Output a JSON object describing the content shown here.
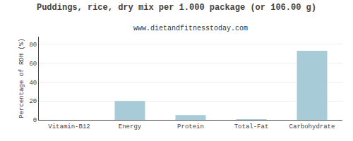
{
  "chart_data": {
    "type": "bar",
    "title": "Puddings, rice, dry mix per 1.000 package (or 106.00 g)",
    "subtitle": "www.dietandfitnesstoday.com",
    "categories": [
      "Vitamin-B12",
      "Energy",
      "Protein",
      "Total-Fat",
      "Carbohydrate"
    ],
    "values": [
      0,
      20,
      5,
      0.5,
      73
    ],
    "color": "#a8ccd7",
    "ylabel": "Percentage of RDH (%)",
    "ylim": [
      0,
      88
    ],
    "yticks": [
      0,
      20,
      40,
      60,
      80
    ],
    "grid": true
  }
}
